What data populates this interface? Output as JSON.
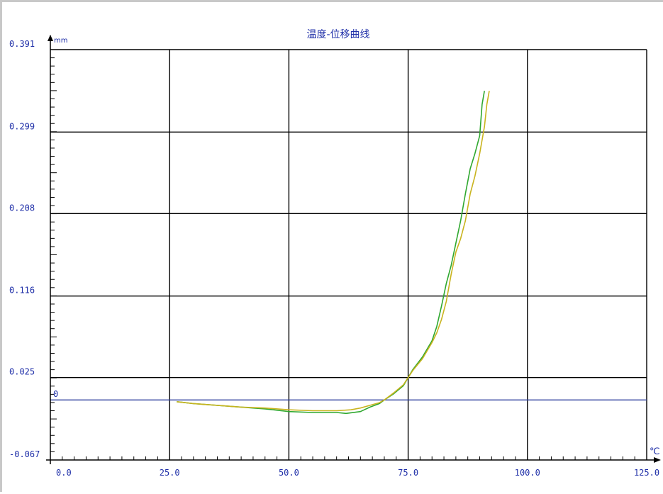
{
  "chart_data": {
    "type": "line",
    "title": "温度-位移曲线",
    "ylabel": "mm",
    "xlabel": "℃",
    "xlim": [
      0,
      125
    ],
    "ylim": [
      -0.067,
      0.391
    ],
    "x_ticks": [
      "0.0",
      "25.0",
      "50.0",
      "75.0",
      "100.0",
      "125.0"
    ],
    "y_ticks": [
      "0.391",
      "0.299",
      "0.208",
      "0.116",
      "0.025",
      "-0.067"
    ],
    "y_tick_values": [
      0.391,
      0.299,
      0.208,
      0.116,
      0.025,
      -0.067
    ],
    "zero_line": {
      "label": "0",
      "value": 0,
      "color": "#2b3e9c"
    },
    "grid": true,
    "series": [
      {
        "color": "#2fa82f",
        "points": [
          [
            26.5,
            -0.002
          ],
          [
            30,
            -0.004
          ],
          [
            35,
            -0.006
          ],
          [
            40,
            -0.008
          ],
          [
            45,
            -0.01
          ],
          [
            50,
            -0.013
          ],
          [
            55,
            -0.014
          ],
          [
            60,
            -0.014
          ],
          [
            62,
            -0.015
          ],
          [
            65,
            -0.013
          ],
          [
            67,
            -0.008
          ],
          [
            69,
            -0.004
          ],
          [
            70,
            0.0
          ],
          [
            72,
            0.007
          ],
          [
            74,
            0.016
          ],
          [
            75,
            0.025
          ],
          [
            76,
            0.034
          ],
          [
            78,
            0.048
          ],
          [
            80,
            0.066
          ],
          [
            81,
            0.082
          ],
          [
            82,
            0.105
          ],
          [
            83,
            0.13
          ],
          [
            84,
            0.15
          ],
          [
            85,
            0.175
          ],
          [
            86,
            0.2
          ],
          [
            87,
            0.23
          ],
          [
            88,
            0.258
          ],
          [
            89,
            0.275
          ],
          [
            90,
            0.295
          ],
          [
            90.5,
            0.33
          ],
          [
            91,
            0.345
          ]
        ]
      },
      {
        "color": "#c9b41f",
        "points": [
          [
            26.5,
            -0.002
          ],
          [
            30,
            -0.004
          ],
          [
            35,
            -0.006
          ],
          [
            40,
            -0.008
          ],
          [
            45,
            -0.009
          ],
          [
            50,
            -0.011
          ],
          [
            55,
            -0.012
          ],
          [
            60,
            -0.012
          ],
          [
            63,
            -0.011
          ],
          [
            65,
            -0.009
          ],
          [
            67,
            -0.006
          ],
          [
            69,
            -0.003
          ],
          [
            70,
            0.0
          ],
          [
            72,
            0.008
          ],
          [
            74,
            0.017
          ],
          [
            75,
            0.025
          ],
          [
            76,
            0.033
          ],
          [
            78,
            0.046
          ],
          [
            80,
            0.064
          ],
          [
            81,
            0.075
          ],
          [
            82,
            0.09
          ],
          [
            83,
            0.11
          ],
          [
            84,
            0.14
          ],
          [
            85,
            0.165
          ],
          [
            86,
            0.18
          ],
          [
            87,
            0.2
          ],
          [
            88,
            0.23
          ],
          [
            89,
            0.25
          ],
          [
            90,
            0.275
          ],
          [
            91,
            0.305
          ],
          [
            91.5,
            0.33
          ],
          [
            92,
            0.345
          ]
        ]
      }
    ]
  }
}
